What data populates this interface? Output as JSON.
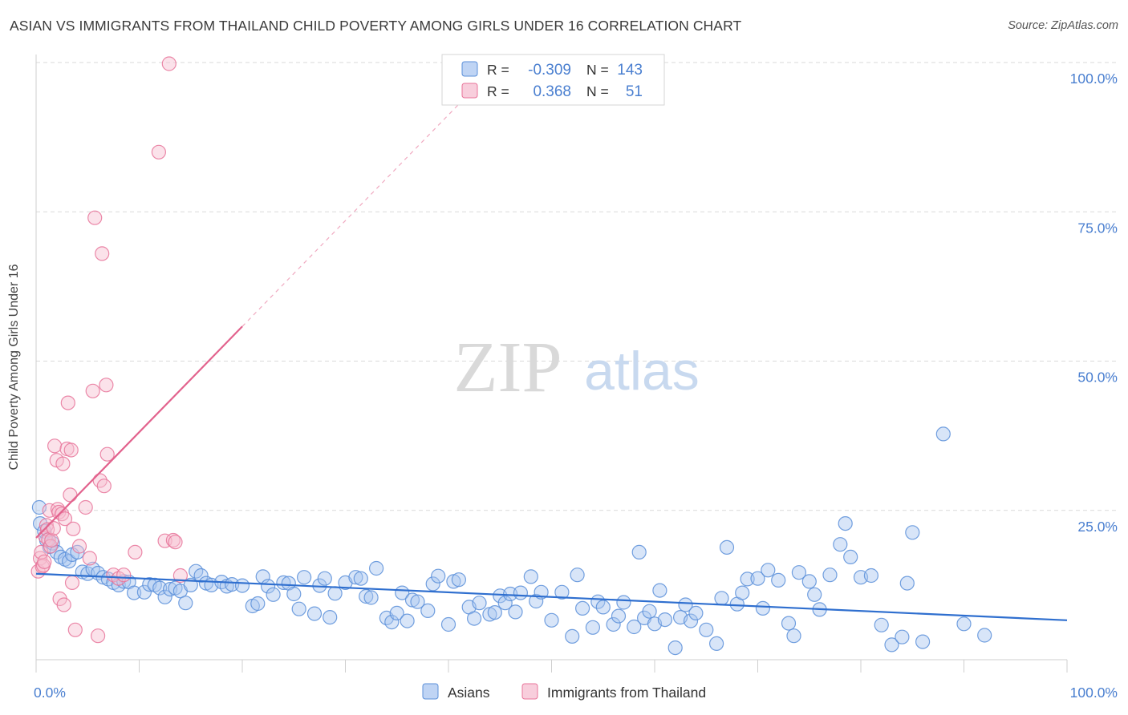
{
  "header": {
    "title": "ASIAN VS IMMIGRANTS FROM THAILAND CHILD POVERTY AMONG GIRLS UNDER 16 CORRELATION CHART",
    "source": "Source: ZipAtlas.com"
  },
  "watermark": {
    "zip": "ZIP",
    "atlas": "atlas"
  },
  "colors": {
    "asians": "#5b8fd9",
    "asians_fill": "#a9c6f0",
    "thailand": "#e8749a",
    "thailand_fill": "#f6bed0",
    "axis_text": "#4a7fd0",
    "grid": "#d9d9d9"
  },
  "chart_data": {
    "type": "scatter",
    "title": "ASIAN VS IMMIGRANTS FROM THAILAND CHILD POVERTY AMONG GIRLS UNDER 16 CORRELATION CHART",
    "xlabel": "",
    "ylabel": "Child Poverty Among Girls Under 16",
    "xlim": [
      0,
      100
    ],
    "ylim": [
      0,
      100
    ],
    "x_tick_labels": [
      "0.0%",
      "100.0%"
    ],
    "y_tick_labels": [
      "100.0%",
      "75.0%",
      "50.0%",
      "25.0%"
    ],
    "y_ticks": [
      100,
      75,
      50,
      25
    ],
    "grid": true,
    "legend": {
      "placement": "top-center",
      "rows": [
        {
          "r_label": "R =",
          "r_value": "-0.309",
          "n_label": "N =",
          "n_value": "143"
        },
        {
          "r_label": "R =",
          "r_value": "0.368",
          "n_label": "N =",
          "n_value": "51"
        }
      ]
    },
    "bottom_legend": [
      "Asians",
      "Immigrants from Thailand"
    ],
    "series": [
      {
        "name": "Asians",
        "r": -0.309,
        "n": 143,
        "trend": {
          "x": [
            0,
            100
          ],
          "y": [
            14.4,
            6.6
          ]
        },
        "points": [
          [
            0.3,
            25.5
          ],
          [
            0.4,
            22.8
          ],
          [
            0.8,
            21.5
          ],
          [
            1.0,
            20.0
          ],
          [
            1.3,
            18.9
          ],
          [
            1.6,
            19.5
          ],
          [
            2.0,
            18.0
          ],
          [
            2.4,
            17.2
          ],
          [
            2.8,
            16.8
          ],
          [
            3.2,
            16.5
          ],
          [
            3.5,
            17.6
          ],
          [
            4.0,
            18.0
          ],
          [
            4.5,
            14.7
          ],
          [
            5.0,
            14.4
          ],
          [
            5.5,
            15.2
          ],
          [
            6.0,
            14.5
          ],
          [
            6.5,
            13.8
          ],
          [
            7.0,
            13.5
          ],
          [
            7.5,
            12.9
          ],
          [
            8.0,
            12.5
          ],
          [
            8.5,
            13.1
          ],
          [
            9.0,
            13.0
          ],
          [
            9.5,
            11.2
          ],
          [
            10.5,
            11.3
          ],
          [
            11.0,
            12.6
          ],
          [
            11.5,
            12.5
          ],
          [
            12.0,
            12.0
          ],
          [
            12.5,
            10.5
          ],
          [
            13.0,
            11.8
          ],
          [
            13.5,
            12.0
          ],
          [
            14.0,
            11.5
          ],
          [
            14.5,
            9.5
          ],
          [
            15.0,
            12.5
          ],
          [
            15.5,
            14.8
          ],
          [
            16.0,
            14.1
          ],
          [
            16.5,
            12.8
          ],
          [
            17.0,
            12.5
          ],
          [
            18.0,
            13.0
          ],
          [
            18.5,
            12.3
          ],
          [
            19.0,
            12.6
          ],
          [
            20.0,
            12.4
          ],
          [
            21.0,
            9.0
          ],
          [
            21.5,
            9.4
          ],
          [
            22.0,
            13.9
          ],
          [
            22.5,
            12.3
          ],
          [
            23.0,
            10.9
          ],
          [
            24.0,
            12.9
          ],
          [
            24.5,
            12.8
          ],
          [
            25.0,
            11.0
          ],
          [
            25.5,
            8.5
          ],
          [
            26.0,
            13.8
          ],
          [
            27.0,
            7.7
          ],
          [
            27.5,
            12.4
          ],
          [
            28.0,
            13.6
          ],
          [
            28.5,
            7.1
          ],
          [
            29.0,
            11.1
          ],
          [
            30.0,
            12.9
          ],
          [
            31.0,
            13.8
          ],
          [
            31.5,
            13.6
          ],
          [
            32.0,
            10.6
          ],
          [
            32.5,
            10.4
          ],
          [
            33.0,
            15.3
          ],
          [
            34.0,
            7.0
          ],
          [
            34.5,
            6.3
          ],
          [
            35.0,
            7.8
          ],
          [
            35.5,
            11.2
          ],
          [
            36.0,
            6.5
          ],
          [
            36.5,
            10.0
          ],
          [
            37.0,
            9.7
          ],
          [
            38.0,
            8.2
          ],
          [
            38.5,
            12.7
          ],
          [
            39.0,
            14.0
          ],
          [
            40.0,
            5.9
          ],
          [
            40.5,
            13.1
          ],
          [
            41.0,
            13.4
          ],
          [
            42.0,
            8.8
          ],
          [
            42.5,
            6.9
          ],
          [
            43.0,
            9.5
          ],
          [
            44.0,
            7.6
          ],
          [
            44.5,
            7.9
          ],
          [
            45.0,
            10.7
          ],
          [
            45.5,
            9.5
          ],
          [
            46.0,
            11.0
          ],
          [
            46.5,
            8.0
          ],
          [
            47.0,
            11.2
          ],
          [
            48.0,
            13.9
          ],
          [
            48.5,
            9.8
          ],
          [
            49.0,
            11.3
          ],
          [
            50.0,
            6.6
          ],
          [
            51.0,
            11.3
          ],
          [
            52.0,
            3.9
          ],
          [
            52.5,
            14.2
          ],
          [
            53.0,
            8.6
          ],
          [
            54.0,
            5.4
          ],
          [
            54.5,
            9.7
          ],
          [
            55.0,
            8.8
          ],
          [
            56.0,
            5.9
          ],
          [
            56.5,
            7.3
          ],
          [
            57.0,
            9.6
          ],
          [
            58.0,
            5.5
          ],
          [
            58.5,
            18.0
          ],
          [
            59.0,
            7.0
          ],
          [
            59.5,
            8.1
          ],
          [
            60.0,
            6.0
          ],
          [
            60.5,
            11.6
          ],
          [
            61.0,
            6.7
          ],
          [
            62.0,
            2.0
          ],
          [
            62.5,
            7.1
          ],
          [
            63.0,
            9.2
          ],
          [
            63.5,
            6.5
          ],
          [
            64.0,
            7.8
          ],
          [
            65.0,
            5.0
          ],
          [
            66.0,
            2.7
          ],
          [
            66.5,
            10.3
          ],
          [
            67.0,
            18.8
          ],
          [
            68.0,
            9.3
          ],
          [
            68.5,
            11.2
          ],
          [
            69.0,
            13.5
          ],
          [
            70.0,
            13.6
          ],
          [
            70.5,
            8.6
          ],
          [
            71.0,
            15.0
          ],
          [
            72.0,
            13.3
          ],
          [
            73.0,
            6.1
          ],
          [
            73.5,
            4.0
          ],
          [
            74.0,
            14.6
          ],
          [
            75.0,
            13.1
          ],
          [
            75.5,
            10.9
          ],
          [
            76.0,
            8.4
          ],
          [
            77.0,
            14.2
          ],
          [
            78.0,
            19.3
          ],
          [
            78.5,
            22.8
          ],
          [
            79.0,
            17.2
          ],
          [
            80.0,
            13.8
          ],
          [
            81.0,
            14.1
          ],
          [
            82.0,
            5.8
          ],
          [
            83.0,
            2.5
          ],
          [
            84.0,
            3.8
          ],
          [
            84.5,
            12.8
          ],
          [
            85.0,
            21.3
          ],
          [
            86.0,
            3.0
          ],
          [
            88.0,
            37.8
          ],
          [
            90.0,
            6.0
          ],
          [
            92.0,
            4.1
          ]
        ]
      },
      {
        "name": "Immigrants from Thailand",
        "r": 0.368,
        "n": 51,
        "trend": {
          "x": [
            0,
            20
          ],
          "y": [
            20.4,
            55.8
          ]
        },
        "trend_extension": {
          "x": [
            20,
            41.5
          ],
          "y": [
            55.8,
            93.9
          ]
        },
        "points": [
          [
            0.2,
            14.8
          ],
          [
            0.4,
            17.0
          ],
          [
            0.5,
            18.0
          ],
          [
            0.6,
            15.6
          ],
          [
            0.7,
            15.8
          ],
          [
            0.8,
            16.4
          ],
          [
            0.9,
            20.6
          ],
          [
            1.0,
            22.5
          ],
          [
            1.1,
            21.8
          ],
          [
            1.2,
            20.1
          ],
          [
            1.3,
            25.0
          ],
          [
            1.4,
            19.0
          ],
          [
            1.5,
            20.0
          ],
          [
            1.7,
            22.0
          ],
          [
            1.8,
            35.8
          ],
          [
            2.0,
            33.4
          ],
          [
            2.1,
            25.2
          ],
          [
            2.2,
            24.7
          ],
          [
            2.3,
            10.2
          ],
          [
            2.5,
            24.4
          ],
          [
            2.6,
            32.8
          ],
          [
            2.7,
            9.2
          ],
          [
            2.8,
            23.6
          ],
          [
            3.0,
            35.3
          ],
          [
            3.1,
            43.0
          ],
          [
            3.3,
            27.6
          ],
          [
            3.4,
            35.1
          ],
          [
            3.5,
            12.9
          ],
          [
            3.6,
            21.9
          ],
          [
            3.8,
            5.0
          ],
          [
            4.2,
            19.0
          ],
          [
            4.8,
            25.5
          ],
          [
            5.2,
            17.0
          ],
          [
            5.5,
            45.0
          ],
          [
            5.7,
            74.0
          ],
          [
            6.0,
            4.0
          ],
          [
            6.2,
            30.0
          ],
          [
            6.4,
            68.0
          ],
          [
            6.6,
            29.1
          ],
          [
            6.8,
            46.0
          ],
          [
            6.9,
            34.4
          ],
          [
            7.5,
            14.2
          ],
          [
            8.0,
            13.6
          ],
          [
            8.5,
            14.2
          ],
          [
            9.6,
            18.0
          ],
          [
            11.9,
            85.0
          ],
          [
            12.5,
            19.9
          ],
          [
            12.9,
            99.8
          ],
          [
            13.3,
            20.0
          ],
          [
            13.5,
            19.7
          ],
          [
            14.0,
            14.1
          ]
        ]
      }
    ]
  }
}
